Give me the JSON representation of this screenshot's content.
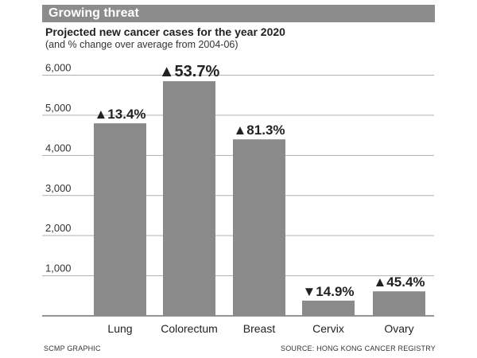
{
  "header": {
    "banner": "Growing threat",
    "title": "Projected new cancer cases for the year 2020",
    "subtitle": "(and % change over average from 2004-06)"
  },
  "footer": {
    "credit": "SCMP GRAPHIC",
    "source": "SOURCE: HONG KONG CANCER REGISTRY"
  },
  "colors": {
    "bar": "#8a8a8a",
    "banner": "#8c8c8c",
    "grid": "#b0b0b0",
    "text": "#222222"
  },
  "chart_data": {
    "type": "bar",
    "categories": [
      "Lung",
      "Colorectum",
      "Breast",
      "Cervix",
      "Ovary"
    ],
    "values": [
      4800,
      5850,
      4400,
      380,
      610
    ],
    "annotations": [
      "▲13.4%",
      "▲53.7%",
      "▲81.3%",
      "▼14.9%",
      "▲45.4%"
    ],
    "yticks": [
      1000,
      2000,
      3000,
      4000,
      5000,
      6000
    ],
    "ytick_labels": [
      "1,000",
      "2,000",
      "3,000",
      "4,000",
      "5,000",
      "6,000"
    ],
    "ylim": [
      0,
      6000
    ],
    "grid": true,
    "xlabel": "",
    "ylabel": ""
  }
}
